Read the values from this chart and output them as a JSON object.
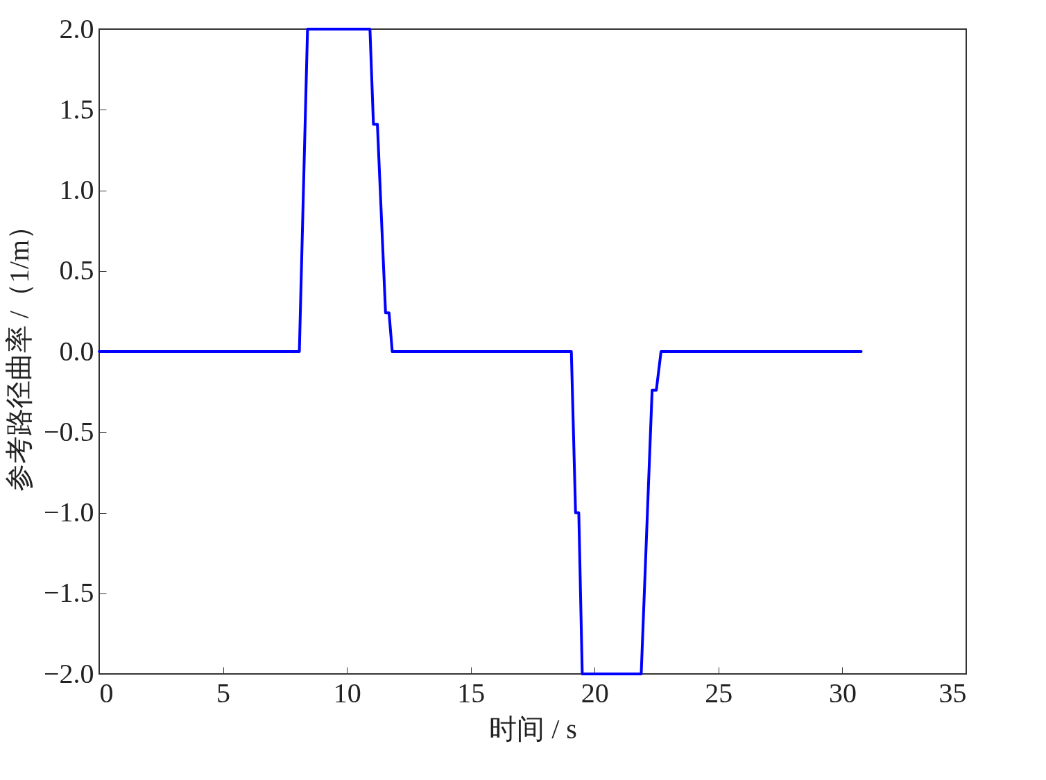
{
  "chart_data": {
    "type": "line",
    "xlabel": "时间 / s",
    "ylabel": "参考路径曲率 /（1/m）",
    "x": [
      0,
      8.08,
      8.41,
      10.93,
      11.07,
      11.23,
      11.56,
      11.7,
      11.83,
      19.06,
      19.23,
      19.36,
      19.5,
      21.88,
      22.32,
      22.49,
      22.68,
      30.76
    ],
    "series": [
      {
        "color": "#0000ff",
        "values": [
          0,
          0,
          2,
          2,
          1.41,
          1.41,
          0.24,
          0.24,
          0,
          0,
          -1,
          -1,
          -2,
          -2,
          -0.24,
          -0.24,
          0,
          0
        ]
      }
    ],
    "xlim": [
      0,
      35
    ],
    "xticks": [
      0,
      5,
      10,
      15,
      20,
      25,
      30,
      35
    ],
    "ylim": [
      -2,
      2
    ],
    "yticks": [
      {
        "value": -2,
        "label": "−2.0"
      },
      {
        "value": -1.5,
        "label": "−1.5"
      },
      {
        "value": -1,
        "label": "−1.0"
      },
      {
        "value": -0.5,
        "label": "−0.5"
      },
      {
        "value": 0,
        "label": "0.0"
      },
      {
        "value": 0.5,
        "label": "0.5"
      },
      {
        "value": 1,
        "label": "1.0"
      },
      {
        "value": 1.5,
        "label": "1.5"
      },
      {
        "value": 2,
        "label": "2.0"
      }
    ],
    "grid": false,
    "marker": "none",
    "line_style": "solid"
  }
}
